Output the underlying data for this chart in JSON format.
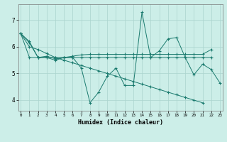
{
  "xlabel": "Humidex (Indice chaleur)",
  "ylabel": "",
  "bg_color": "#cceee8",
  "grid_color": "#aad4ce",
  "line_color": "#1a7a6e",
  "x_ticks": [
    0,
    1,
    2,
    3,
    4,
    5,
    6,
    7,
    8,
    9,
    10,
    11,
    12,
    13,
    14,
    15,
    16,
    17,
    18,
    19,
    20,
    21,
    22,
    23
  ],
  "y_ticks": [
    4,
    5,
    6,
    7
  ],
  "ylim": [
    3.6,
    7.6
  ],
  "xlim": [
    -0.3,
    23.3
  ],
  "series": [
    [
      6.5,
      6.2,
      5.6,
      5.6,
      5.5,
      5.6,
      5.6,
      5.2,
      3.9,
      4.3,
      4.9,
      5.2,
      4.55,
      4.55,
      7.3,
      5.6,
      5.85,
      6.3,
      6.35,
      5.6,
      4.95,
      5.35,
      5.15,
      4.65
    ],
    [
      6.5,
      6.15,
      5.6,
      5.65,
      5.55,
      5.6,
      5.65,
      5.7,
      5.72,
      5.72,
      5.72,
      5.72,
      5.72,
      5.72,
      5.72,
      5.72,
      5.72,
      5.72,
      5.72,
      5.72,
      5.72,
      5.72,
      5.9,
      null
    ],
    [
      6.5,
      5.6,
      5.6,
      5.6,
      5.6,
      5.6,
      5.6,
      5.6,
      5.6,
      5.6,
      5.6,
      5.6,
      5.6,
      5.6,
      5.6,
      5.6,
      5.6,
      5.6,
      5.6,
      5.6,
      5.6,
      5.6,
      5.6,
      null
    ],
    [
      6.5,
      6.0,
      5.9,
      5.75,
      5.6,
      5.5,
      5.4,
      5.3,
      5.2,
      5.1,
      5.0,
      4.9,
      4.8,
      4.7,
      4.6,
      4.5,
      4.4,
      4.3,
      4.2,
      4.1,
      4.0,
      3.9,
      null,
      null
    ]
  ]
}
